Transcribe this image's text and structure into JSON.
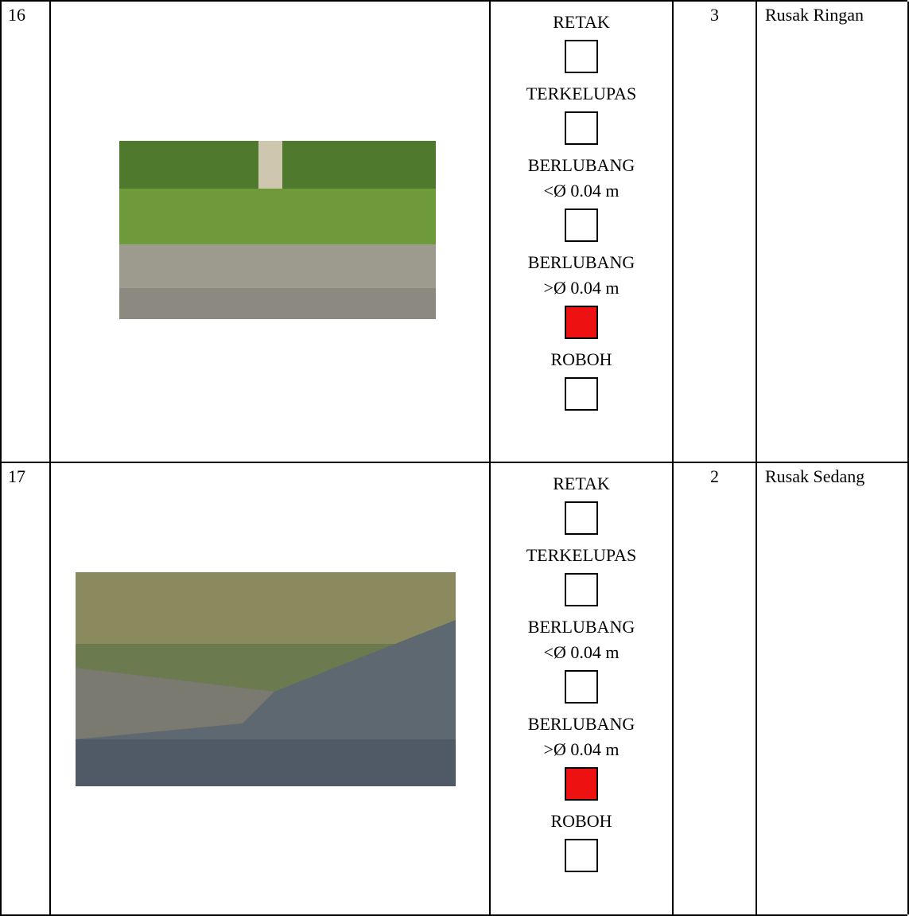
{
  "table": {
    "rows": [
      {
        "number": 16,
        "items": [
          {
            "lines": [
              "RETAK"
            ],
            "checked": false
          },
          {
            "lines": [
              "TERKELUPAS"
            ],
            "checked": false
          },
          {
            "lines": [
              "BERLUBANG",
              "<Ø 0.04 m"
            ],
            "checked": false
          },
          {
            "lines": [
              "BERLUBANG",
              ">Ø 0.04 m"
            ],
            "checked": true
          },
          {
            "lines": [
              "ROBOH"
            ],
            "checked": false
          }
        ],
        "score": 3,
        "condition": "Rusak Ringan"
      },
      {
        "number": 17,
        "items": [
          {
            "lines": [
              "RETAK"
            ],
            "checked": false
          },
          {
            "lines": [
              "TERKELUPAS"
            ],
            "checked": false
          },
          {
            "lines": [
              "BERLUBANG",
              "<Ø 0.04 m"
            ],
            "checked": false
          },
          {
            "lines": [
              "BERLUBANG",
              ">Ø 0.04 m"
            ],
            "checked": true
          },
          {
            "lines": [
              "ROBOH"
            ],
            "checked": false
          }
        ],
        "score": 2,
        "condition": "Rusak Sedang"
      }
    ]
  }
}
